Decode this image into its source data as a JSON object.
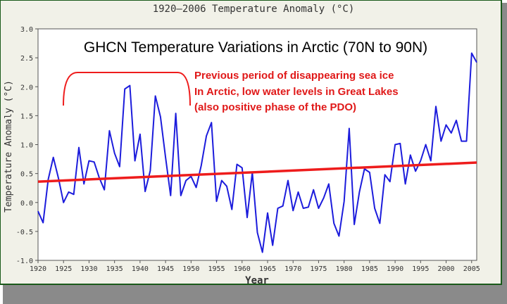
{
  "chart_data": {
    "type": "line",
    "title": "1920–2006 Temperature Anomaly (°C)",
    "subtitle": "GHCN Temperature Variations in Arctic (70N to 90N)",
    "xlabel": "Year",
    "ylabel": "Temperature Anomaly (°C)",
    "xlim": [
      1920,
      2006
    ],
    "ylim": [
      -1.0,
      3.0
    ],
    "grid": false,
    "x_ticks": [
      "1920",
      "1925",
      "1930",
      "1935",
      "1940",
      "1945",
      "1950",
      "1955",
      "1960",
      "1965",
      "1970",
      "1975",
      "1980",
      "1985",
      "1990",
      "1995",
      "2000",
      "2005"
    ],
    "y_ticks": [
      "3.0",
      "2.5",
      "2.0",
      "1.5",
      "1.0",
      "0.5",
      "0.0",
      "-0.5",
      "-1.0"
    ],
    "series": [
      {
        "color": "#1c1cdc",
        "x": [
          1920,
          1921,
          1922,
          1923,
          1924,
          1925,
          1926,
          1927,
          1928,
          1929,
          1930,
          1931,
          1932,
          1933,
          1934,
          1935,
          1936,
          1937,
          1938,
          1939,
          1940,
          1941,
          1942,
          1943,
          1944,
          1945,
          1946,
          1947,
          1948,
          1949,
          1950,
          1951,
          1952,
          1953,
          1954,
          1955,
          1956,
          1957,
          1958,
          1959,
          1960,
          1961,
          1962,
          1963,
          1964,
          1965,
          1966,
          1967,
          1968,
          1969,
          1970,
          1971,
          1972,
          1973,
          1974,
          1975,
          1976,
          1977,
          1978,
          1979,
          1980,
          1981,
          1982,
          1983,
          1984,
          1985,
          1986,
          1987,
          1988,
          1989,
          1990,
          1991,
          1992,
          1993,
          1994,
          1995,
          1996,
          1997,
          1998,
          1999,
          2000,
          2001,
          2002,
          2003,
          2004,
          2005,
          2006
        ],
        "values": [
          -0.15,
          -0.35,
          0.4,
          0.78,
          0.42,
          0.0,
          0.18,
          0.14,
          0.95,
          0.32,
          0.72,
          0.7,
          0.43,
          0.22,
          1.24,
          0.85,
          0.62,
          1.96,
          2.02,
          0.72,
          1.18,
          0.19,
          0.55,
          1.84,
          1.48,
          0.78,
          0.12,
          1.54,
          0.12,
          0.38,
          0.45,
          0.26,
          0.64,
          1.15,
          1.38,
          0.02,
          0.38,
          0.28,
          -0.12,
          0.66,
          0.6,
          -0.26,
          0.52,
          -0.52,
          -0.86,
          -0.18,
          -0.74,
          -0.1,
          -0.06,
          0.38,
          -0.14,
          0.18,
          -0.1,
          -0.08,
          0.22,
          -0.1,
          0.08,
          0.32,
          -0.36,
          -0.58,
          0.02,
          1.28,
          -0.38,
          0.18,
          0.58,
          0.52,
          -0.1,
          -0.36,
          0.48,
          0.36,
          1.0,
          1.02,
          0.32,
          0.82,
          0.54,
          0.72,
          1.0,
          0.72,
          1.66,
          1.06,
          1.34,
          1.2,
          1.42,
          1.06,
          1.06,
          2.58,
          2.42
        ]
      },
      {
        "color": "#ee1c1c",
        "x": [
          1920,
          2006
        ],
        "values": [
          0.36,
          0.69
        ]
      }
    ],
    "annotations": [
      "Previous period of disappearing sea ice",
      "In Arctic, low water levels in Great Lakes",
      "(also positive phase of the PDO)"
    ]
  }
}
